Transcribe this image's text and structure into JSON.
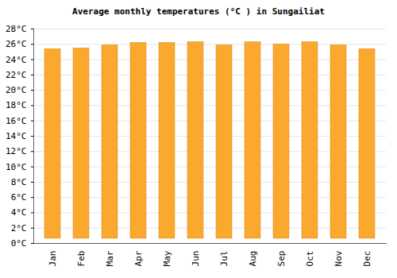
{
  "chart_data": {
    "type": "bar",
    "title": "Average monthly temperatures (°C ) in Sungailiat",
    "categories": [
      "Jan",
      "Feb",
      "Mar",
      "Apr",
      "May",
      "Jun",
      "Jul",
      "Aug",
      "Sep",
      "Oct",
      "Nov",
      "Dec"
    ],
    "values": [
      26,
      26.1,
      26.5,
      26.8,
      26.8,
      26.9,
      26.5,
      26.9,
      26.6,
      26.9,
      26.5,
      26
    ],
    "color": "#fba82f",
    "ylim": [
      0,
      28
    ],
    "yticks": [
      {
        "value": 0,
        "label": "0°C"
      },
      {
        "value": 2,
        "label": "2°C"
      },
      {
        "value": 4,
        "label": "4°C"
      },
      {
        "value": 6,
        "label": "6°C"
      },
      {
        "value": 8,
        "label": "8°C"
      },
      {
        "value": 10,
        "label": "10°C"
      },
      {
        "value": 12,
        "label": "12°C"
      },
      {
        "value": 14,
        "label": "14°C"
      },
      {
        "value": 16,
        "label": "16°C"
      },
      {
        "value": 18,
        "label": "18°C"
      },
      {
        "value": 20,
        "label": "20°C"
      },
      {
        "value": 22,
        "label": "22°C"
      },
      {
        "value": 24,
        "label": "24°C"
      },
      {
        "value": 26,
        "label": "26°C"
      },
      {
        "value": 28,
        "label": "28°C"
      }
    ],
    "grid": true
  }
}
